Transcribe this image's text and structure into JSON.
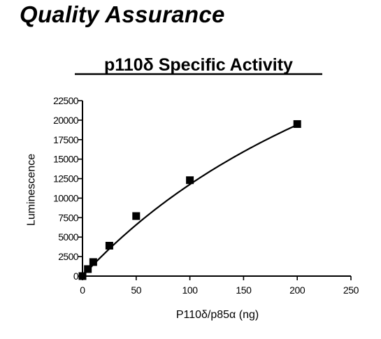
{
  "page": {
    "heading": "Quality Assurance"
  },
  "chart_data": {
    "type": "line",
    "title": "p110δ Specific Activity",
    "xlabel": "P110δ/p85α (ng)",
    "ylabel": "Luminescence",
    "xlim": [
      0,
      250
    ],
    "ylim": [
      0,
      22500
    ],
    "x_ticks": [
      "0",
      "50",
      "100",
      "150",
      "200",
      "250"
    ],
    "y_ticks": [
      "0",
      "2500",
      "5000",
      "7500",
      "10000",
      "12500",
      "15000",
      "17500",
      "20000",
      "22500"
    ],
    "grid": false,
    "legend": "none",
    "series": [
      {
        "marker": "square",
        "x": [
          0,
          5,
          10,
          25,
          50,
          100,
          200
        ],
        "y": [
          0,
          900,
          1800,
          3900,
          7700,
          12300,
          19500
        ],
        "color": "#000000"
      }
    ],
    "fit_curve": "smooth saturating fit through the points"
  }
}
